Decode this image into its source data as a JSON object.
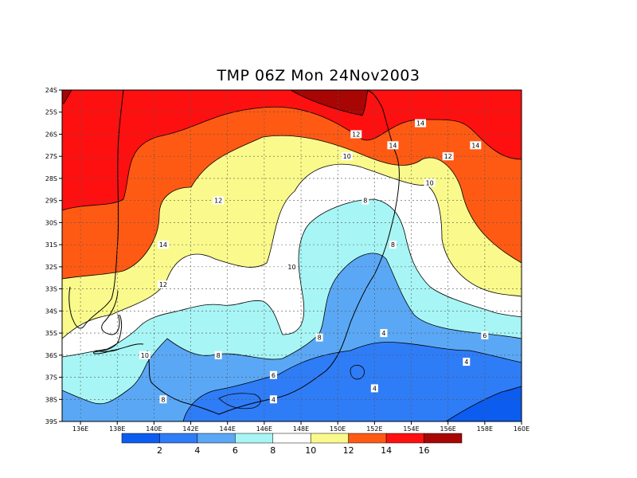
{
  "title": "TMP 06Z Mon 24Nov2003",
  "map": {
    "lat_labels": [
      "24S",
      "25S",
      "26S",
      "27S",
      "28S",
      "29S",
      "30S",
      "31S",
      "32S",
      "33S",
      "34S",
      "35S",
      "36S",
      "37S",
      "38S",
      "39S"
    ],
    "lon_labels": [
      "136E",
      "138E",
      "140E",
      "142E",
      "144E",
      "146E",
      "148E",
      "150E",
      "152E",
      "154E",
      "156E",
      "158E",
      "160E"
    ],
    "grid": "dotted",
    "contour_labels": [
      {
        "text": "14",
        "lon": 154.5,
        "lat": 25.5
      },
      {
        "text": "14",
        "lon": 157.5,
        "lat": 26.5
      },
      {
        "text": "14",
        "lon": 153.0,
        "lat": 26.5
      },
      {
        "text": "14",
        "lon": 140.5,
        "lat": 31.0
      },
      {
        "text": "12",
        "lon": 151.0,
        "lat": 26.0
      },
      {
        "text": "12",
        "lon": 156.0,
        "lat": 27.0
      },
      {
        "text": "12",
        "lon": 143.5,
        "lat": 29.0
      },
      {
        "text": "12",
        "lon": 140.5,
        "lat": 32.8
      },
      {
        "text": "10",
        "lon": 150.5,
        "lat": 27.0
      },
      {
        "text": "10",
        "lon": 155.0,
        "lat": 28.2
      },
      {
        "text": "10",
        "lon": 147.5,
        "lat": 32.0
      },
      {
        "text": "10",
        "lon": 139.5,
        "lat": 36.0
      },
      {
        "text": "8",
        "lon": 151.5,
        "lat": 29.0
      },
      {
        "text": "8",
        "lon": 153.0,
        "lat": 31.0
      },
      {
        "text": "8",
        "lon": 149.0,
        "lat": 35.2
      },
      {
        "text": "8",
        "lon": 143.5,
        "lat": 36.0
      },
      {
        "text": "8",
        "lon": 140.5,
        "lat": 38.0
      },
      {
        "text": "6",
        "lon": 146.5,
        "lat": 36.9
      },
      {
        "text": "6",
        "lon": 158.0,
        "lat": 35.1
      },
      {
        "text": "4",
        "lon": 152.5,
        "lat": 35.0
      },
      {
        "text": "4",
        "lon": 157.0,
        "lat": 36.3
      },
      {
        "text": "4",
        "lon": 152.0,
        "lat": 37.5
      },
      {
        "text": "4",
        "lon": 146.5,
        "lat": 38.0
      }
    ]
  },
  "colorbar": {
    "colors": [
      "#0d5cf0",
      "#2f7cf7",
      "#5aa8f5",
      "#a8f5f5",
      "#ffffff",
      "#fafa8c",
      "#ff5a14",
      "#ff1010",
      "#a80505"
    ],
    "labels": [
      "2",
      "4",
      "6",
      "8",
      "10",
      "12",
      "14",
      "16"
    ]
  }
}
